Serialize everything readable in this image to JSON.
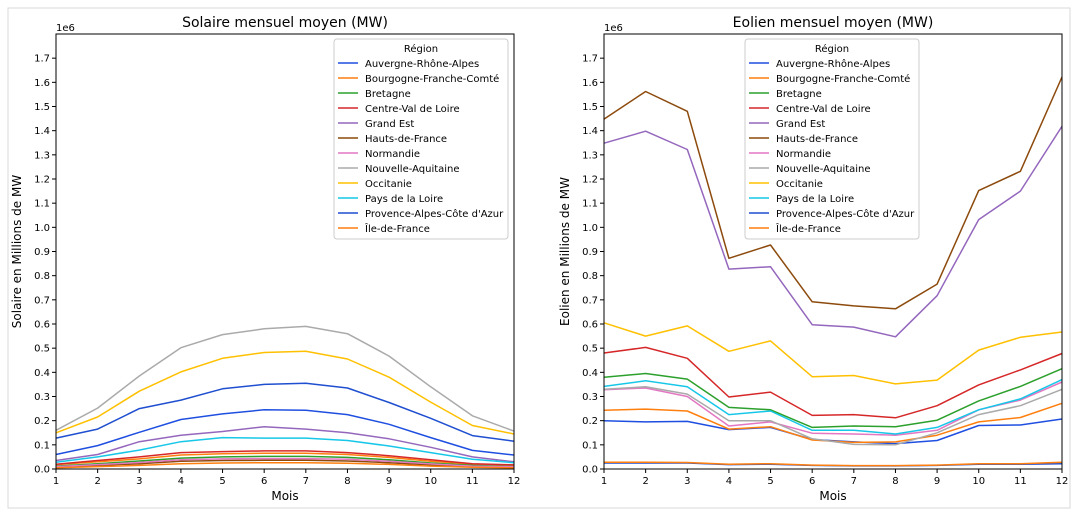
{
  "figure": {
    "scale_marker": "1e6"
  },
  "chart_data": [
    {
      "type": "line",
      "title": "Solaire mensuel moyen (MW)",
      "xlabel": "Mois",
      "ylabel": "Solaire en Millions de MW",
      "xlim": [
        1,
        12
      ],
      "ylim": [
        0,
        1.8
      ],
      "y_scale_label": "1e6",
      "x_ticks": [
        "1",
        "2",
        "3",
        "4",
        "5",
        "6",
        "7",
        "8",
        "9",
        "10",
        "11",
        "12"
      ],
      "y_ticks": [
        "0.0",
        "0.1",
        "0.2",
        "0.3",
        "0.4",
        "0.5",
        "0.6",
        "0.7",
        "0.8",
        "0.9",
        "1.0",
        "1.1",
        "1.2",
        "1.3",
        "1.4",
        "1.5",
        "1.6",
        "1.7"
      ],
      "grid": false,
      "legend": {
        "title": "Région",
        "position": "top-right"
      },
      "x": [
        1,
        2,
        3,
        4,
        5,
        6,
        7,
        8,
        9,
        10,
        11,
        12
      ],
      "series": [
        {
          "name": "Auvergne-Rhône-Alpes",
          "color": "#1f4fe0",
          "values": [
            0.06,
            0.097,
            0.152,
            0.205,
            0.228,
            0.245,
            0.243,
            0.225,
            0.185,
            0.13,
            0.077,
            0.058
          ]
        },
        {
          "name": "Bourgogne-Franche-Comté",
          "color": "#ff7f0e",
          "values": [
            0.018,
            0.03,
            0.042,
            0.058,
            0.063,
            0.065,
            0.065,
            0.06,
            0.048,
            0.032,
            0.02,
            0.016
          ]
        },
        {
          "name": "Bretagne",
          "color": "#2ca02c",
          "values": [
            0.012,
            0.022,
            0.033,
            0.045,
            0.05,
            0.052,
            0.052,
            0.048,
            0.038,
            0.025,
            0.015,
            0.01
          ]
        },
        {
          "name": "Centre-Val de Loire",
          "color": "#d62728",
          "values": [
            0.02,
            0.035,
            0.05,
            0.068,
            0.072,
            0.075,
            0.075,
            0.068,
            0.055,
            0.038,
            0.022,
            0.017
          ]
        },
        {
          "name": "Grand Est",
          "color": "#9467bd",
          "values": [
            0.035,
            0.06,
            0.113,
            0.14,
            0.155,
            0.175,
            0.165,
            0.15,
            0.125,
            0.09,
            0.05,
            0.03
          ]
        },
        {
          "name": "Hauts-de-France",
          "color": "#8c4a0c",
          "values": [
            0.008,
            0.015,
            0.022,
            0.032,
            0.035,
            0.036,
            0.036,
            0.033,
            0.026,
            0.017,
            0.01,
            0.007
          ]
        },
        {
          "name": "Normandie",
          "color": "#e377c2",
          "values": [
            0.01,
            0.018,
            0.027,
            0.038,
            0.042,
            0.043,
            0.043,
            0.04,
            0.032,
            0.021,
            0.012,
            0.009
          ]
        },
        {
          "name": "Nouvelle-Aquitaine",
          "color": "#aaaaaa",
          "values": [
            0.16,
            0.252,
            0.385,
            0.502,
            0.556,
            0.58,
            0.59,
            0.56,
            0.467,
            0.34,
            0.22,
            0.157
          ]
        },
        {
          "name": "Occitanie",
          "color": "#ffc000",
          "values": [
            0.15,
            0.215,
            0.322,
            0.402,
            0.458,
            0.482,
            0.487,
            0.455,
            0.38,
            0.277,
            0.18,
            0.145
          ]
        },
        {
          "name": "Pays de la Loire",
          "color": "#17c7e8",
          "values": [
            0.028,
            0.05,
            0.078,
            0.113,
            0.13,
            0.128,
            0.128,
            0.118,
            0.095,
            0.068,
            0.04,
            0.026
          ]
        },
        {
          "name": "Provence-Alpes-Côte d'Azur",
          "color": "#1f4fd0",
          "values": [
            0.128,
            0.165,
            0.25,
            0.285,
            0.332,
            0.35,
            0.355,
            0.335,
            0.275,
            0.21,
            0.138,
            0.115
          ]
        },
        {
          "name": "Île-de-France",
          "color": "#ff7f0e",
          "values": [
            0.005,
            0.01,
            0.015,
            0.022,
            0.025,
            0.026,
            0.026,
            0.024,
            0.019,
            0.012,
            0.007,
            0.005
          ]
        }
      ]
    },
    {
      "type": "line",
      "title": "Eolien mensuel moyen (MW)",
      "xlabel": "Mois",
      "ylabel": "Eolien en Millions de MW",
      "xlim": [
        1,
        12
      ],
      "ylim": [
        0,
        1.8
      ],
      "y_scale_label": "1e6",
      "x_ticks": [
        "1",
        "2",
        "3",
        "4",
        "5",
        "6",
        "7",
        "8",
        "9",
        "10",
        "11",
        "12"
      ],
      "y_ticks": [
        "0.0",
        "0.1",
        "0.2",
        "0.3",
        "0.4",
        "0.5",
        "0.6",
        "0.7",
        "0.8",
        "0.9",
        "1.0",
        "1.1",
        "1.2",
        "1.3",
        "1.4",
        "1.5",
        "1.6",
        "1.7"
      ],
      "grid": false,
      "legend": {
        "title": "Région",
        "position": "top-left"
      },
      "x": [
        1,
        2,
        3,
        4,
        5,
        6,
        7,
        8,
        9,
        10,
        11,
        12
      ],
      "series": [
        {
          "name": "Auvergne-Rhône-Alpes",
          "color": "#1f4fe0",
          "values": [
            0.2,
            0.195,
            0.197,
            0.163,
            0.172,
            0.122,
            0.112,
            0.105,
            0.118,
            0.18,
            0.182,
            0.207
          ]
        },
        {
          "name": "Bourgogne-Franche-Comté",
          "color": "#ff7f0e",
          "values": [
            0.243,
            0.248,
            0.24,
            0.165,
            0.175,
            0.12,
            0.11,
            0.112,
            0.14,
            0.195,
            0.213,
            0.272
          ]
        },
        {
          "name": "Bretagne",
          "color": "#2ca02c",
          "values": [
            0.38,
            0.395,
            0.372,
            0.255,
            0.245,
            0.172,
            0.178,
            0.175,
            0.202,
            0.282,
            0.342,
            0.415
          ]
        },
        {
          "name": "Centre-Val de Loire",
          "color": "#d62728",
          "values": [
            0.48,
            0.503,
            0.458,
            0.298,
            0.318,
            0.222,
            0.225,
            0.212,
            0.262,
            0.348,
            0.41,
            0.478
          ]
        },
        {
          "name": "Grand Est",
          "color": "#9467bd",
          "values": [
            1.348,
            1.398,
            1.322,
            0.827,
            0.837,
            0.597,
            0.587,
            0.547,
            0.717,
            1.032,
            1.15,
            1.418
          ]
        },
        {
          "name": "Hauts-de-France",
          "color": "#8c4a0c",
          "values": [
            1.448,
            1.562,
            1.48,
            0.872,
            0.927,
            0.692,
            0.675,
            0.663,
            0.765,
            1.152,
            1.232,
            1.622
          ]
        },
        {
          "name": "Normandie",
          "color": "#e377c2",
          "values": [
            0.328,
            0.335,
            0.3,
            0.178,
            0.195,
            0.148,
            0.145,
            0.14,
            0.16,
            0.245,
            0.285,
            0.36
          ]
        },
        {
          "name": "Nouvelle-Aquitaine",
          "color": "#aaaaaa",
          "values": [
            0.33,
            0.34,
            0.31,
            0.2,
            0.2,
            0.125,
            0.102,
            0.1,
            0.15,
            0.225,
            0.262,
            0.33
          ]
        },
        {
          "name": "Occitanie",
          "color": "#ffc000",
          "values": [
            0.605,
            0.55,
            0.592,
            0.487,
            0.53,
            0.382,
            0.387,
            0.352,
            0.368,
            0.492,
            0.545,
            0.567
          ]
        },
        {
          "name": "Pays de la Loire",
          "color": "#17c7e8",
          "values": [
            0.342,
            0.365,
            0.34,
            0.225,
            0.24,
            0.16,
            0.16,
            0.145,
            0.172,
            0.245,
            0.29,
            0.37
          ]
        },
        {
          "name": "Provence-Alpes-Côte d'Azur",
          "color": "#1f4fd0",
          "values": [
            0.025,
            0.025,
            0.025,
            0.018,
            0.02,
            0.015,
            0.013,
            0.013,
            0.015,
            0.02,
            0.02,
            0.022
          ]
        },
        {
          "name": "Île-de-France",
          "color": "#ff7f0e",
          "values": [
            0.028,
            0.028,
            0.027,
            0.02,
            0.022,
            0.016,
            0.014,
            0.014,
            0.016,
            0.022,
            0.022,
            0.028
          ]
        }
      ]
    }
  ]
}
